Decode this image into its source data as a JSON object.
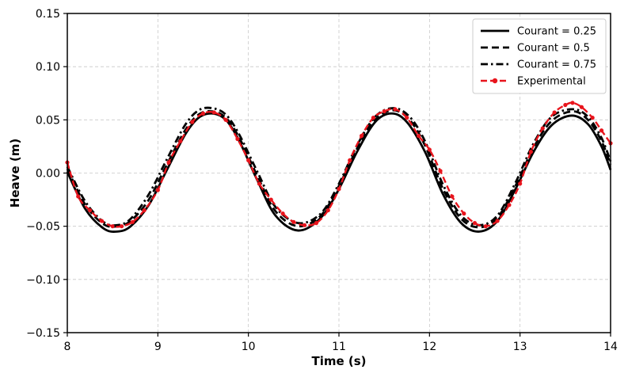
{
  "chart_data": {
    "type": "line",
    "title": "",
    "xlabel": "Time (s)",
    "ylabel": "Heave (m)",
    "xlim": [
      8,
      14
    ],
    "ylim": [
      -0.15,
      0.15
    ],
    "xticks": [
      8,
      9,
      10,
      11,
      12,
      13,
      14
    ],
    "xtick_labels": [
      "8",
      "9",
      "10",
      "11",
      "12",
      "13",
      "14"
    ],
    "yticks": [
      -0.15,
      -0.1,
      -0.05,
      0.0,
      0.05,
      0.1,
      0.15
    ],
    "ytick_labels": [
      "−0.15",
      "−0.10",
      "−0.05",
      "0.00",
      "0.05",
      "0.10",
      "0.15"
    ],
    "grid": true,
    "legend_position": "top-right",
    "series": [
      {
        "name": "Courant = 0.25",
        "color": "#000000",
        "style": "solid",
        "x": [
          8.0,
          8.2,
          8.4,
          8.55,
          8.7,
          8.9,
          9.1,
          9.3,
          9.45,
          9.6,
          9.75,
          9.9,
          10.1,
          10.3,
          10.55,
          10.8,
          11.0,
          11.2,
          11.4,
          11.58,
          11.75,
          11.95,
          12.15,
          12.35,
          12.55,
          12.75,
          12.95,
          13.15,
          13.35,
          13.57,
          13.75,
          13.9,
          14.0
        ],
        "y": [
          0.001,
          -0.034,
          -0.052,
          -0.055,
          -0.05,
          -0.03,
          0.003,
          0.036,
          0.052,
          0.056,
          0.05,
          0.03,
          -0.007,
          -0.04,
          -0.054,
          -0.042,
          -0.015,
          0.02,
          0.048,
          0.056,
          0.048,
          0.02,
          -0.02,
          -0.047,
          -0.055,
          -0.045,
          -0.015,
          0.02,
          0.045,
          0.054,
          0.046,
          0.025,
          0.003
        ]
      },
      {
        "name": "Courant = 0.5",
        "color": "#000000",
        "style": "dashed",
        "x": [
          8.0,
          8.2,
          8.4,
          8.55,
          8.7,
          8.9,
          9.1,
          9.3,
          9.45,
          9.6,
          9.75,
          9.9,
          10.1,
          10.3,
          10.55,
          10.8,
          11.0,
          11.2,
          11.4,
          11.6,
          11.78,
          11.95,
          12.15,
          12.35,
          12.55,
          12.75,
          12.95,
          13.15,
          13.35,
          13.58,
          13.75,
          13.9,
          14.0
        ],
        "y": [
          0.004,
          -0.03,
          -0.048,
          -0.05,
          -0.045,
          -0.025,
          0.008,
          0.04,
          0.055,
          0.058,
          0.052,
          0.033,
          -0.003,
          -0.036,
          -0.05,
          -0.04,
          -0.012,
          0.023,
          0.05,
          0.059,
          0.05,
          0.026,
          -0.015,
          -0.043,
          -0.051,
          -0.042,
          -0.012,
          0.024,
          0.049,
          0.058,
          0.05,
          0.03,
          0.008
        ]
      },
      {
        "name": "Courant = 0.75",
        "color": "#000000",
        "style": "dashdot",
        "x": [
          8.0,
          8.2,
          8.4,
          8.55,
          8.7,
          8.9,
          9.1,
          9.3,
          9.45,
          9.6,
          9.75,
          9.9,
          10.1,
          10.3,
          10.55,
          10.8,
          11.0,
          11.2,
          11.4,
          11.6,
          11.78,
          11.95,
          12.15,
          12.35,
          12.55,
          12.75,
          12.95,
          13.15,
          13.35,
          13.58,
          13.75,
          13.9,
          14.0
        ],
        "y": [
          0.006,
          -0.027,
          -0.046,
          -0.049,
          -0.043,
          -0.02,
          0.013,
          0.045,
          0.059,
          0.061,
          0.055,
          0.036,
          0.001,
          -0.032,
          -0.047,
          -0.038,
          -0.01,
          0.026,
          0.053,
          0.061,
          0.053,
          0.03,
          -0.011,
          -0.04,
          -0.049,
          -0.04,
          -0.009,
          0.028,
          0.053,
          0.06,
          0.053,
          0.033,
          0.011
        ]
      },
      {
        "name": "Experimental",
        "color": "#e8141c",
        "style": "dashed-marker",
        "x": [
          8.0,
          8.12,
          8.25,
          8.38,
          8.5,
          8.6,
          8.72,
          8.85,
          9.0,
          9.12,
          9.25,
          9.38,
          9.5,
          9.62,
          9.75,
          9.88,
          10.0,
          10.12,
          10.25,
          10.38,
          10.5,
          10.62,
          10.75,
          10.88,
          11.0,
          11.12,
          11.25,
          11.38,
          11.5,
          11.62,
          11.75,
          11.88,
          12.0,
          12.12,
          12.25,
          12.38,
          12.5,
          12.62,
          12.75,
          12.88,
          13.0,
          13.12,
          13.25,
          13.38,
          13.5,
          13.58,
          13.68,
          13.8,
          13.9,
          14.0
        ],
        "y": [
          0.01,
          -0.022,
          -0.035,
          -0.045,
          -0.05,
          -0.05,
          -0.046,
          -0.035,
          -0.016,
          0.01,
          0.03,
          0.048,
          0.056,
          0.057,
          0.05,
          0.032,
          0.012,
          -0.01,
          -0.025,
          -0.038,
          -0.046,
          -0.049,
          -0.047,
          -0.035,
          -0.015,
          0.012,
          0.035,
          0.052,
          0.058,
          0.06,
          0.052,
          0.035,
          0.022,
          0.002,
          -0.022,
          -0.038,
          -0.047,
          -0.05,
          -0.045,
          -0.03,
          -0.01,
          0.02,
          0.042,
          0.057,
          0.064,
          0.066,
          0.062,
          0.052,
          0.04,
          0.028
        ]
      }
    ]
  }
}
